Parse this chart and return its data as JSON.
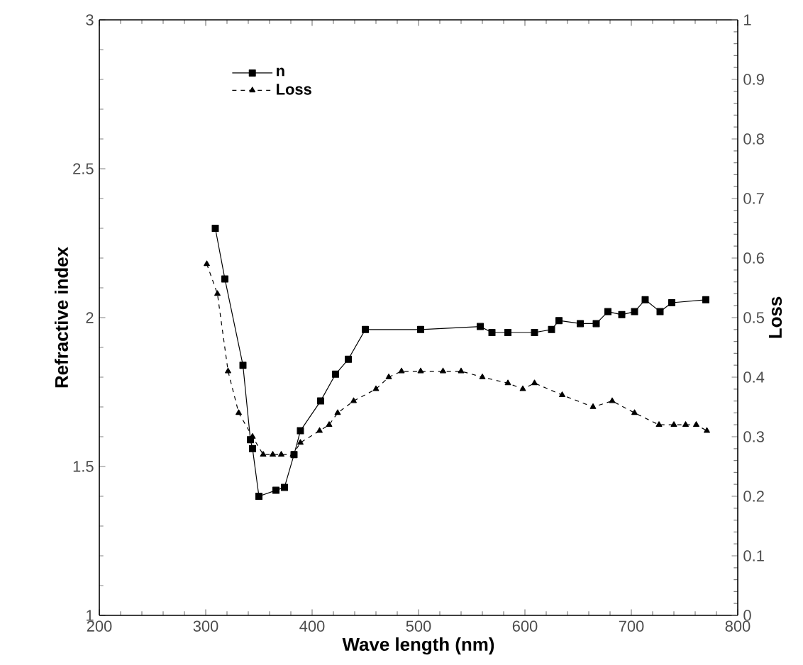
{
  "chart_data": {
    "type": "line",
    "xlabel": "Wave length (nm)",
    "ylabel": "Refractive index",
    "y2label": "Loss",
    "xlim": [
      200,
      800
    ],
    "ylim": [
      1,
      3
    ],
    "y2lim": [
      0,
      1
    ],
    "xticks": [
      200,
      300,
      400,
      500,
      600,
      700,
      800
    ],
    "yticks": [
      1,
      1.5,
      2,
      2.5,
      3
    ],
    "y2ticks": [
      0,
      0.1,
      0.2,
      0.3,
      0.4,
      0.5,
      0.6,
      0.7,
      0.8,
      0.9,
      1
    ],
    "legend": "top left",
    "grid": false,
    "series": [
      {
        "name": "n",
        "color": "#000000",
        "marker": "square",
        "line_style": "solid",
        "axis": "y",
        "x": [
          309,
          318,
          335,
          342,
          344,
          350,
          366,
          374,
          383,
          389,
          408,
          422,
          434,
          450,
          502,
          558,
          569,
          584,
          609,
          625,
          632,
          652,
          667,
          678,
          691,
          703,
          713,
          727,
          738,
          770
        ],
        "values": [
          2.3,
          2.13,
          1.84,
          1.59,
          1.56,
          1.4,
          1.42,
          1.43,
          1.54,
          1.62,
          1.72,
          1.81,
          1.86,
          1.96,
          1.96,
          1.97,
          1.95,
          1.95,
          1.95,
          1.96,
          1.99,
          1.98,
          1.98,
          2.02,
          2.01,
          2.02,
          2.06,
          2.02,
          2.05,
          2.06
        ]
      },
      {
        "name": "Loss",
        "color": "#000000",
        "marker": "triangle",
        "line_style": "dashed",
        "axis": "y2",
        "x": [
          301,
          311,
          321,
          331,
          344,
          354,
          363,
          371,
          382,
          389,
          407,
          416,
          424,
          439,
          460,
          472,
          484,
          502,
          523,
          540,
          560,
          584,
          598,
          609,
          635,
          664,
          682,
          703,
          726,
          740,
          751,
          761,
          771
        ],
        "values": [
          0.59,
          0.54,
          0.41,
          0.34,
          0.3,
          0.27,
          0.27,
          0.27,
          0.27,
          0.29,
          0.31,
          0.32,
          0.34,
          0.36,
          0.38,
          0.4,
          0.41,
          0.41,
          0.41,
          0.41,
          0.4,
          0.39,
          0.38,
          0.39,
          0.37,
          0.35,
          0.36,
          0.34,
          0.32,
          0.32,
          0.32,
          0.32,
          0.31
        ]
      }
    ]
  }
}
